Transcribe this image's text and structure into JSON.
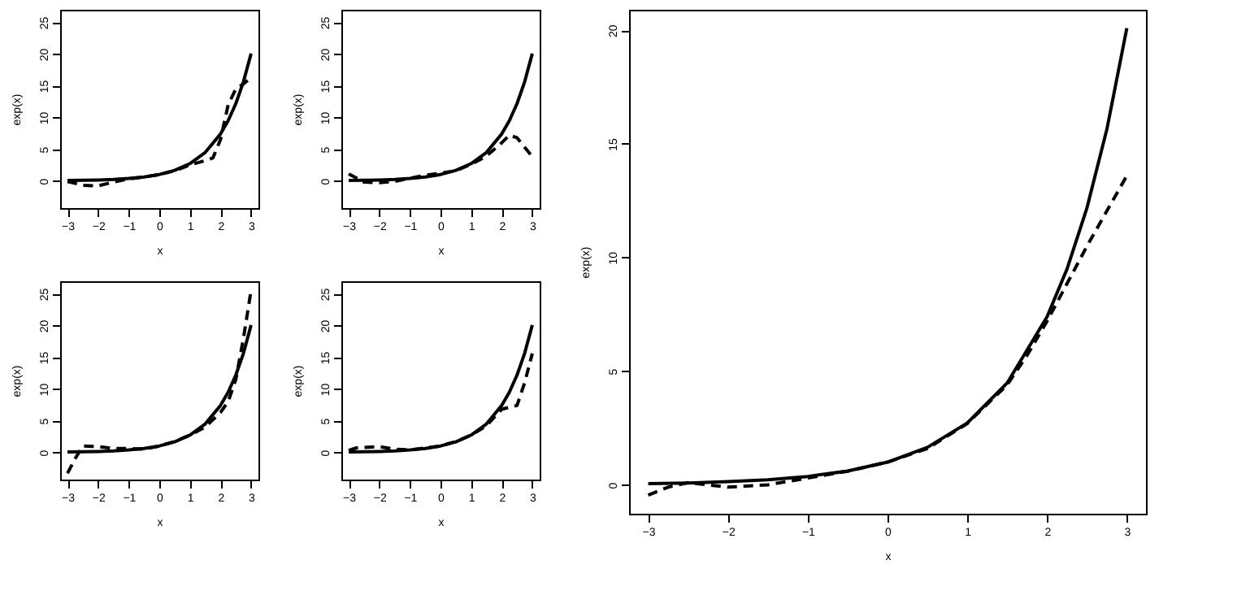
{
  "chart_data": [
    {
      "type": "line",
      "xlabel": "x",
      "ylabel": "exp(x)",
      "xlim": [
        -3.24,
        3.24
      ],
      "ylim": [
        -4.3,
        27
      ],
      "xticks": [
        -3,
        -2,
        -1,
        0,
        1,
        2,
        3
      ],
      "yticks": [
        0,
        5,
        10,
        15,
        20,
        25
      ],
      "grid": false,
      "series": [
        {
          "color": "#000000",
          "line_style": "solid",
          "x": [
            -3,
            -2.5,
            -2,
            -1.5,
            -1,
            -0.5,
            0,
            0.5,
            1,
            1.5,
            2,
            2.25,
            2.5,
            2.75,
            3
          ],
          "values": [
            0.05,
            0.08,
            0.14,
            0.22,
            0.37,
            0.61,
            1.0,
            1.65,
            2.72,
            4.48,
            7.39,
            9.49,
            12.18,
            15.64,
            20.09
          ]
        },
        {
          "color": "#000000",
          "line_style": "dashed",
          "x": [
            -3,
            -2.5,
            -2,
            -1.5,
            -1,
            -0.5,
            0,
            0.5,
            1,
            1.5,
            1.75,
            2,
            2.25,
            2.5,
            2.75,
            3
          ],
          "values": [
            -0.1,
            -0.7,
            -0.8,
            -0.2,
            0.3,
            0.6,
            1.0,
            1.6,
            2.5,
            3.2,
            3.6,
            6.5,
            12,
            14.5,
            15.3,
            16.3
          ]
        }
      ]
    },
    {
      "type": "line",
      "xlabel": "x",
      "ylabel": "exp(x)",
      "xlim": [
        -3.24,
        3.24
      ],
      "ylim": [
        -4.3,
        27
      ],
      "xticks": [
        -3,
        -2,
        -1,
        0,
        1,
        2,
        3
      ],
      "yticks": [
        0,
        5,
        10,
        15,
        20,
        25
      ],
      "grid": false,
      "series": [
        {
          "color": "#000000",
          "line_style": "solid",
          "x": [
            -3,
            -2.5,
            -2,
            -1.5,
            -1,
            -0.5,
            0,
            0.5,
            1,
            1.5,
            2,
            2.25,
            2.5,
            2.75,
            3
          ],
          "values": [
            0.05,
            0.08,
            0.14,
            0.22,
            0.37,
            0.61,
            1.0,
            1.65,
            2.72,
            4.48,
            7.39,
            9.49,
            12.18,
            15.64,
            20.09
          ]
        },
        {
          "color": "#000000",
          "line_style": "dashed",
          "x": [
            -3,
            -2.5,
            -2,
            -1.5,
            -1,
            -0.5,
            0,
            0.5,
            1,
            1.5,
            2,
            2.25,
            2.5,
            2.75,
            3
          ],
          "values": [
            1.1,
            -0.2,
            -0.3,
            -0.1,
            0.4,
            0.9,
            1.2,
            1.6,
            2.6,
            3.9,
            6.0,
            7.2,
            6.8,
            5.3,
            3.8
          ]
        }
      ]
    },
    {
      "type": "line",
      "xlabel": "x",
      "ylabel": "exp(x)",
      "xlim": [
        -3.24,
        3.24
      ],
      "ylim": [
        -4.3,
        27
      ],
      "xticks": [
        -3,
        -2,
        -1,
        0,
        1,
        2,
        3
      ],
      "yticks": [
        0,
        5,
        10,
        15,
        20,
        25
      ],
      "grid": false,
      "series": [
        {
          "color": "#000000",
          "line_style": "solid",
          "x": [
            -3,
            -2.5,
            -2,
            -1.5,
            -1,
            -0.5,
            0,
            0.5,
            1,
            1.5,
            2,
            2.25,
            2.5,
            2.75,
            3
          ],
          "values": [
            0.05,
            0.08,
            0.14,
            0.22,
            0.37,
            0.61,
            1.0,
            1.65,
            2.72,
            4.48,
            7.39,
            9.49,
            12.18,
            15.64,
            20.09
          ]
        },
        {
          "color": "#000000",
          "line_style": "dashed",
          "x": [
            -3,
            -2.75,
            -2.5,
            -2,
            -1.5,
            -1,
            -0.5,
            0,
            0.5,
            1,
            1.5,
            2,
            2.25,
            2.5,
            2.75,
            3
          ],
          "values": [
            -3.3,
            -1.0,
            1.0,
            0.9,
            0.6,
            0.6,
            0.5,
            1.0,
            1.7,
            2.7,
            4.0,
            6.3,
            8.0,
            11.5,
            18,
            25.6
          ]
        }
      ]
    },
    {
      "type": "line",
      "xlabel": "x",
      "ylabel": "exp(x)",
      "xlim": [
        -3.24,
        3.24
      ],
      "ylim": [
        -4.3,
        27
      ],
      "xticks": [
        -3,
        -2,
        -1,
        0,
        1,
        2,
        3
      ],
      "yticks": [
        0,
        5,
        10,
        15,
        20,
        25
      ],
      "grid": false,
      "series": [
        {
          "color": "#000000",
          "line_style": "solid",
          "x": [
            -3,
            -2.5,
            -2,
            -1.5,
            -1,
            -0.5,
            0,
            0.5,
            1,
            1.5,
            2,
            2.25,
            2.5,
            2.75,
            3
          ],
          "values": [
            0.05,
            0.08,
            0.14,
            0.22,
            0.37,
            0.61,
            1.0,
            1.65,
            2.72,
            4.48,
            7.39,
            9.49,
            12.18,
            15.64,
            20.09
          ]
        },
        {
          "color": "#000000",
          "line_style": "dashed",
          "x": [
            -3,
            -2.75,
            -2,
            -1.5,
            -1,
            -0.5,
            0,
            0.5,
            1,
            1.5,
            2,
            2.5,
            2.75,
            3
          ],
          "values": [
            0.3,
            0.7,
            0.9,
            0.5,
            0.4,
            0.7,
            1.0,
            1.7,
            2.7,
            4.2,
            6.8,
            7.4,
            11,
            15.6
          ]
        }
      ]
    },
    {
      "type": "line",
      "xlabel": "x",
      "ylabel": "exp(x)",
      "xlim": [
        -3.24,
        3.24
      ],
      "ylim": [
        -1.27,
        20.9
      ],
      "xticks": [
        -3,
        -2,
        -1,
        0,
        1,
        2,
        3
      ],
      "yticks": [
        0,
        5,
        10,
        15,
        20
      ],
      "grid": false,
      "series": [
        {
          "color": "#000000",
          "line_style": "solid",
          "x": [
            -3,
            -2.5,
            -2,
            -1.5,
            -1,
            -0.5,
            0,
            0.5,
            1,
            1.5,
            2,
            2.25,
            2.5,
            2.75,
            3
          ],
          "values": [
            0.05,
            0.08,
            0.14,
            0.22,
            0.37,
            0.61,
            1.0,
            1.65,
            2.72,
            4.48,
            7.39,
            9.49,
            12.18,
            15.64,
            20.09
          ]
        },
        {
          "color": "#000000",
          "line_style": "dashed",
          "x": [
            -3,
            -2.75,
            -2.5,
            -2,
            -1.5,
            -1,
            -0.5,
            0,
            0.5,
            1,
            1.5,
            1.75,
            2,
            2.5,
            3
          ],
          "values": [
            -0.45,
            -0.1,
            0.1,
            -0.1,
            0.0,
            0.3,
            0.6,
            1.0,
            1.6,
            2.7,
            4.4,
            5.7,
            7.2,
            10.5,
            13.6
          ]
        }
      ]
    }
  ]
}
